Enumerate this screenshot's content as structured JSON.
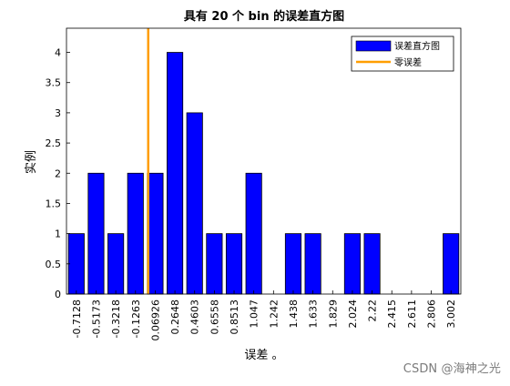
{
  "chart_data": {
    "type": "bar",
    "title": "具有 20 个 bin 的误差直方图",
    "xlabel": "误差 。",
    "ylabel": "实例",
    "categories": [
      "-0.7128",
      "-0.5173",
      "-0.3218",
      "-0.1263",
      "0.06926",
      "0.2648",
      "0.4603",
      "0.6558",
      "0.8513",
      "1.047",
      "1.242",
      "1.438",
      "1.633",
      "1.829",
      "2.024",
      "2.22",
      "2.415",
      "2.611",
      "2.806",
      "3.002"
    ],
    "series": [
      {
        "name": "误差直方图",
        "color": "#0000ff",
        "values": [
          1,
          2,
          1,
          2,
          2,
          4,
          3,
          1,
          1,
          2,
          0,
          1,
          1,
          0,
          1,
          1,
          0,
          0,
          0,
          1
        ]
      }
    ],
    "zero_error": {
      "name": "零误差",
      "color": "#ff9e00",
      "x": 0
    },
    "ylim": [
      0,
      4.4
    ],
    "yticks": [
      "0",
      "0.5",
      "1",
      "1.5",
      "2",
      "2.5",
      "3",
      "3.5",
      "4"
    ],
    "grid": false,
    "legend": "top-right"
  },
  "watermark": "CSDN @海神之光"
}
